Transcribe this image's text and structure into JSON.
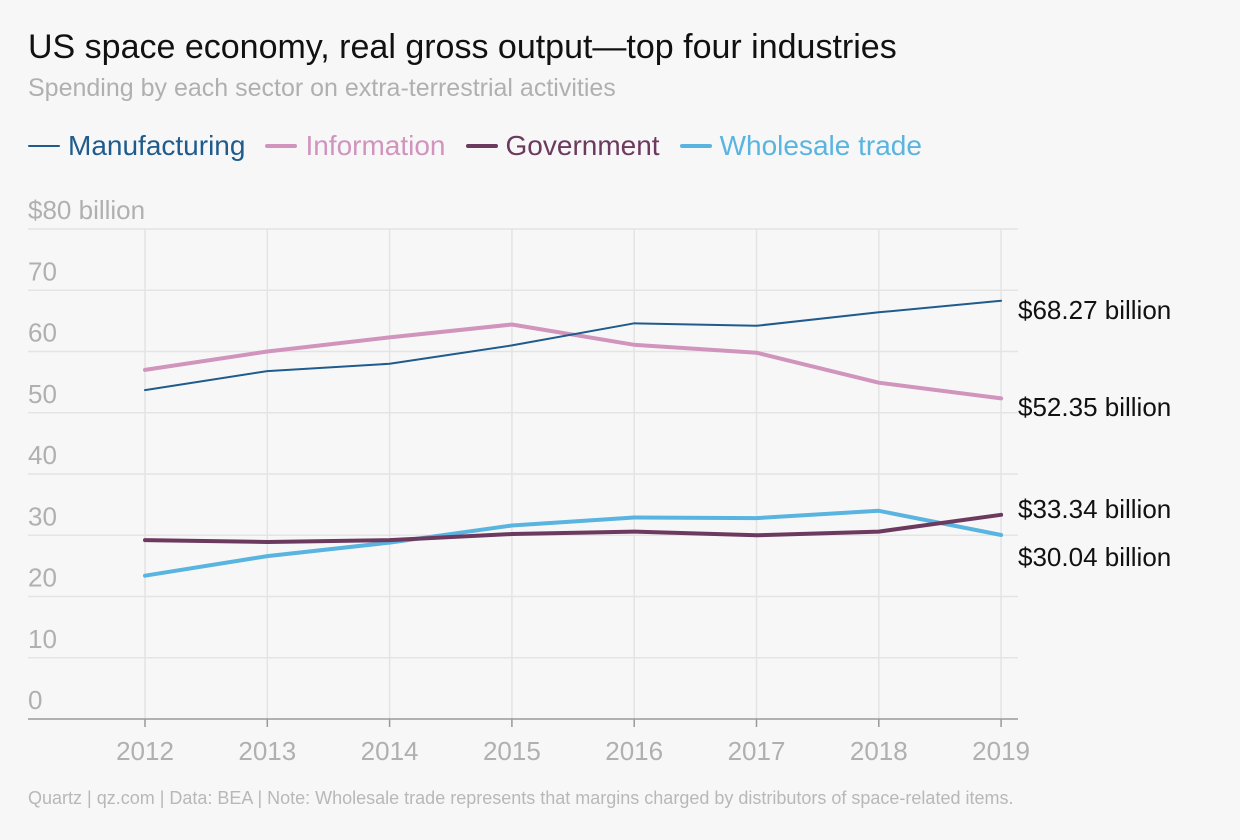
{
  "chart_data": {
    "type": "line",
    "title": "US space economy, real gross output—top four industries",
    "subtitle": "Spending by each sector on extra-terrestrial activities",
    "x": [
      "2012",
      "2013",
      "2014",
      "2015",
      "2016",
      "2017",
      "2018",
      "2019"
    ],
    "ylim": [
      0,
      80
    ],
    "y_ticks": [
      {
        "value": 80,
        "label": "$80 billion"
      },
      {
        "value": 70,
        "label": "70"
      },
      {
        "value": 60,
        "label": "60"
      },
      {
        "value": 50,
        "label": "50"
      },
      {
        "value": 40,
        "label": "40"
      },
      {
        "value": 30,
        "label": "30"
      },
      {
        "value": 20,
        "label": "20"
      },
      {
        "value": 10,
        "label": "10"
      },
      {
        "value": 0,
        "label": "0"
      }
    ],
    "grid": true,
    "legend_position": "top-left",
    "series": [
      {
        "name": "Manufacturing",
        "color": "#1f5b8c",
        "values": [
          53.7,
          56.8,
          58.0,
          61.0,
          64.6,
          64.2,
          66.4,
          68.27
        ],
        "end_label": "$68.27 billion"
      },
      {
        "name": "Information",
        "color": "#d094bd",
        "values": [
          57.0,
          60.0,
          62.3,
          64.4,
          61.1,
          59.8,
          54.9,
          52.35
        ],
        "end_label": "$52.35 billion"
      },
      {
        "name": "Government",
        "color": "#6b3a5e",
        "values": [
          29.2,
          28.9,
          29.2,
          30.2,
          30.6,
          30.0,
          30.6,
          33.34
        ],
        "end_label": "$33.34 billion"
      },
      {
        "name": "Wholesale trade",
        "color": "#5ab4e0",
        "values": [
          23.4,
          26.6,
          28.8,
          31.6,
          32.9,
          32.8,
          34.0,
          30.04
        ],
        "end_label": "$30.04 billion"
      }
    ]
  },
  "footer": "Quartz | qz.com | Data: BEA | Note: Wholesale trade represents that margins charged by distributors of space-related items."
}
